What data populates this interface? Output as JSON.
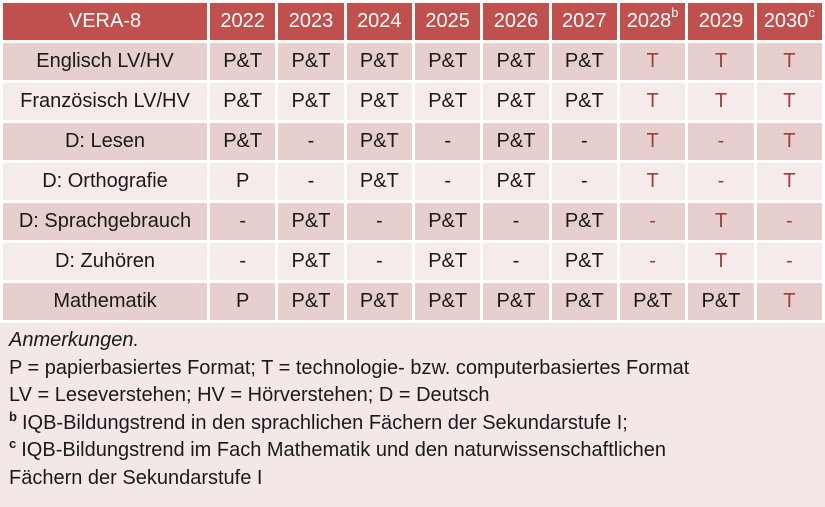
{
  "colors": {
    "header_bg": "#C0504D",
    "header_text": "#FFFFFF",
    "row_dark": "#E7CFCE",
    "row_light": "#F5EBEA",
    "notes_bg": "#F3E8E7",
    "red": "#9E3F3C",
    "text": "#1A1A1A"
  },
  "table": {
    "title": "VERA-8",
    "years": [
      {
        "label": "2022",
        "sup": ""
      },
      {
        "label": "2023",
        "sup": ""
      },
      {
        "label": "2024",
        "sup": ""
      },
      {
        "label": "2025",
        "sup": ""
      },
      {
        "label": "2026",
        "sup": ""
      },
      {
        "label": "2027",
        "sup": ""
      },
      {
        "label": "2028",
        "sup": "b"
      },
      {
        "label": "2029",
        "sup": ""
      },
      {
        "label": "2030",
        "sup": "c"
      }
    ],
    "rows": [
      {
        "label": "Englisch LV/HV",
        "cells": [
          {
            "t": "P&T",
            "red": false
          },
          {
            "t": "P&T",
            "red": false
          },
          {
            "t": "P&T",
            "red": false
          },
          {
            "t": "P&T",
            "red": false
          },
          {
            "t": "P&T",
            "red": false
          },
          {
            "t": "P&T",
            "red": false
          },
          {
            "t": "T",
            "red": true
          },
          {
            "t": "T",
            "red": true
          },
          {
            "t": "T",
            "red": true
          }
        ]
      },
      {
        "label": "Französisch LV/HV",
        "cells": [
          {
            "t": "P&T",
            "red": false
          },
          {
            "t": "P&T",
            "red": false
          },
          {
            "t": "P&T",
            "red": false
          },
          {
            "t": "P&T",
            "red": false
          },
          {
            "t": "P&T",
            "red": false
          },
          {
            "t": "P&T",
            "red": false
          },
          {
            "t": "T",
            "red": true
          },
          {
            "t": "T",
            "red": true
          },
          {
            "t": "T",
            "red": true
          }
        ]
      },
      {
        "label": "D: Lesen",
        "cells": [
          {
            "t": "P&T",
            "red": false
          },
          {
            "t": "-",
            "red": false
          },
          {
            "t": "P&T",
            "red": false
          },
          {
            "t": "-",
            "red": false
          },
          {
            "t": "P&T",
            "red": false
          },
          {
            "t": "-",
            "red": false
          },
          {
            "t": "T",
            "red": true
          },
          {
            "t": "-",
            "red": true
          },
          {
            "t": "T",
            "red": true
          }
        ]
      },
      {
        "label": "D: Orthografie",
        "cells": [
          {
            "t": "P",
            "red": false
          },
          {
            "t": "-",
            "red": false
          },
          {
            "t": "P&T",
            "red": false
          },
          {
            "t": "-",
            "red": false
          },
          {
            "t": "P&T",
            "red": false
          },
          {
            "t": "-",
            "red": false
          },
          {
            "t": "T",
            "red": true
          },
          {
            "t": "-",
            "red": true
          },
          {
            "t": "T",
            "red": true
          }
        ]
      },
      {
        "label": "D: Sprachgebrauch",
        "cells": [
          {
            "t": "-",
            "red": false
          },
          {
            "t": "P&T",
            "red": false
          },
          {
            "t": "-",
            "red": false
          },
          {
            "t": "P&T",
            "red": false
          },
          {
            "t": "-",
            "red": false
          },
          {
            "t": "P&T",
            "red": false
          },
          {
            "t": "-",
            "red": true
          },
          {
            "t": "T",
            "red": true
          },
          {
            "t": "-",
            "red": true
          }
        ]
      },
      {
        "label": "D: Zuhören",
        "cells": [
          {
            "t": "-",
            "red": false
          },
          {
            "t": "P&T",
            "red": false
          },
          {
            "t": "-",
            "red": false
          },
          {
            "t": "P&T",
            "red": false
          },
          {
            "t": "-",
            "red": false
          },
          {
            "t": "P&T",
            "red": false
          },
          {
            "t": "-",
            "red": true
          },
          {
            "t": "T",
            "red": true
          },
          {
            "t": "-",
            "red": true
          }
        ]
      },
      {
        "label": "Mathematik",
        "cells": [
          {
            "t": "P",
            "red": false
          },
          {
            "t": "P&T",
            "red": false
          },
          {
            "t": "P&T",
            "red": false
          },
          {
            "t": "P&T",
            "red": false
          },
          {
            "t": "P&T",
            "red": false
          },
          {
            "t": "P&T",
            "red": false
          },
          {
            "t": "P&T",
            "red": false
          },
          {
            "t": "P&T",
            "red": false
          },
          {
            "t": "T",
            "red": true
          }
        ]
      }
    ]
  },
  "notes": {
    "heading": "Anmerkungen.",
    "lines": [
      {
        "sup": "",
        "text": "P = papierbasiertes Format; T = technologie- bzw. computerbasiertes Format"
      },
      {
        "sup": "",
        "text": "LV = Leseverstehen; HV = Hörverstehen; D = Deutsch"
      },
      {
        "sup": "b",
        "text": "IQB-Bildungstrend in den sprachlichen Fächern der Sekundarstufe I;"
      },
      {
        "sup": "c",
        "text": "IQB-Bildungstrend im Fach Mathematik und den naturwissenschaftlichen"
      },
      {
        "sup": "",
        "text": "Fächern der Sekundarstufe I"
      }
    ]
  }
}
